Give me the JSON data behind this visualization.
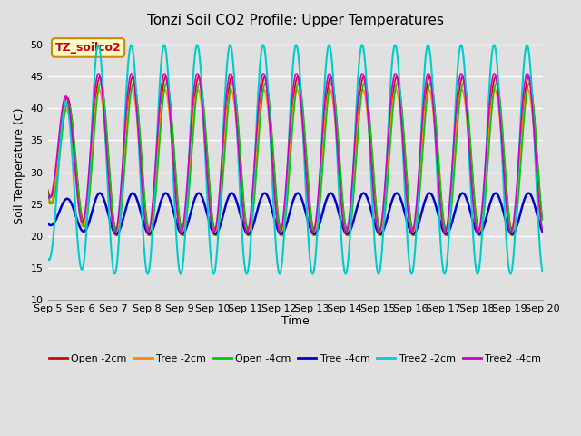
{
  "title": "Tonzi Soil CO2 Profile: Upper Temperatures",
  "xlabel": "Time",
  "ylabel": "Soil Temperature (C)",
  "ylim": [
    10,
    52
  ],
  "yticks": [
    10,
    15,
    20,
    25,
    30,
    35,
    40,
    45,
    50
  ],
  "annotation_text": "TZ_soilco2",
  "annotation_color": "#cc0000",
  "annotation_bg": "#ffffcc",
  "annotation_border": "#cc8800",
  "bg_color": "#e0e0e0",
  "grid_color": "white",
  "series": [
    {
      "label": "Open -2cm",
      "color": "#dd0000",
      "lw": 1.2
    },
    {
      "label": "Tree -2cm",
      "color": "#ff8800",
      "lw": 1.2
    },
    {
      "label": "Open -4cm",
      "color": "#00cc00",
      "lw": 1.2
    },
    {
      "label": "Tree -4cm",
      "color": "#0000cc",
      "lw": 1.8
    },
    {
      "label": "Tree2 -2cm",
      "color": "#00cccc",
      "lw": 1.5
    },
    {
      "label": "Tree2 -4cm",
      "color": "#cc00cc",
      "lw": 1.2
    }
  ],
  "n_days": 15,
  "pts_per_day": 48,
  "start_day": 5,
  "xtick_labels": [
    "Sep 5",
    "Sep 6",
    "Sep 7",
    "Sep 8",
    "Sep 9",
    "Sep 10",
    "Sep 11",
    "Sep 12",
    "Sep 13",
    "Sep 14",
    "Sep 15",
    "Sep 16",
    "Sep 17",
    "Sep 18",
    "Sep 19",
    "Sep 20"
  ]
}
